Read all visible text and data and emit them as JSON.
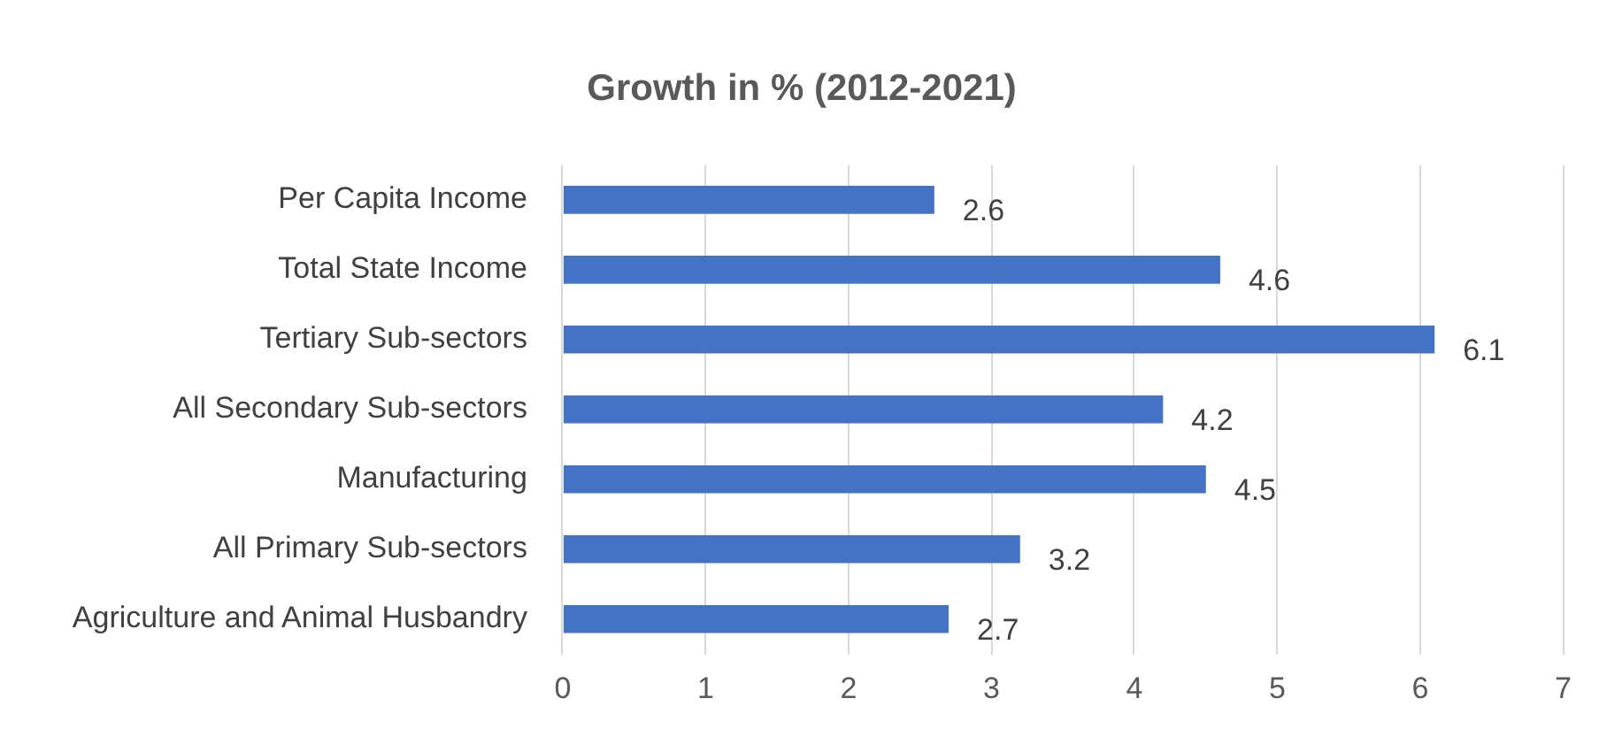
{
  "chart_data": {
    "type": "bar",
    "orientation": "horizontal",
    "title": "Growth in % (2012-2021)",
    "categories": [
      "Per Capita Income",
      "Total State Income",
      "Tertiary Sub-sectors",
      "All Secondary Sub-sectors",
      "Manufacturing",
      "All Primary Sub-sectors",
      "Agriculture and Animal Husbandry"
    ],
    "values": [
      2.6,
      4.6,
      6.1,
      4.2,
      4.5,
      3.2,
      2.7
    ],
    "color": "#4472c4",
    "xlim": [
      0,
      7
    ],
    "xticks": [
      0,
      1,
      2,
      3,
      4,
      5,
      6,
      7
    ],
    "grid": "x",
    "legend": false,
    "data_labels": true
  }
}
